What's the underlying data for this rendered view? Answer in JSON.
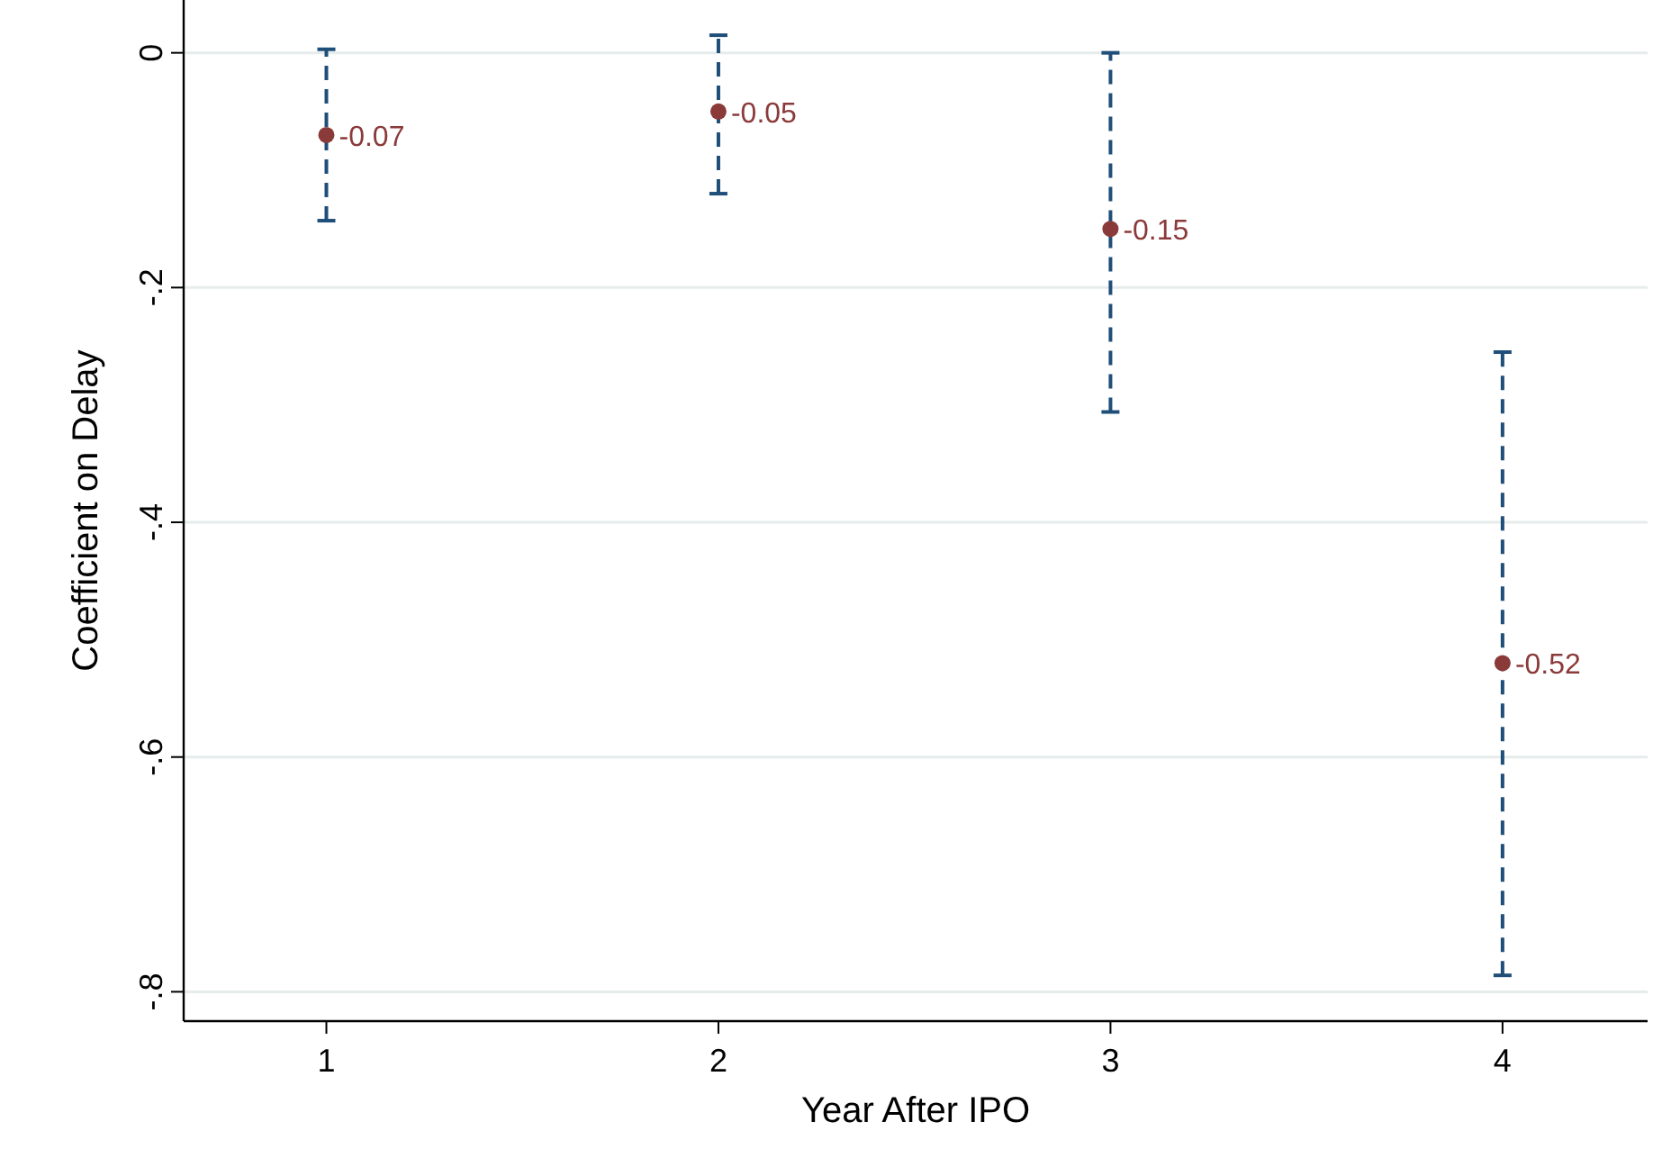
{
  "chart_data": {
    "type": "scatter",
    "xlabel": "Year After IPO",
    "ylabel": "Coefficient on Delay",
    "x": [
      1,
      2,
      3,
      4
    ],
    "series": [
      {
        "color": "#8b3a3a",
        "values": [
          -0.07,
          -0.05,
          -0.15,
          -0.52
        ],
        "errors": [
          [
            -0.143,
            0.003
          ],
          [
            -0.12,
            0.015
          ],
          [
            -0.306,
            0
          ],
          [
            -0.786,
            -0.255
          ]
        ]
      }
    ],
    "data_labels": true,
    "marker": "circle",
    "line_style": "dashed",
    "grid": "y",
    "xlim": [
      0.636,
      4.37
    ],
    "xticks": [
      1,
      2,
      3,
      4
    ],
    "ylim": [
      -0.825,
      0.045
    ],
    "yticks": [
      {
        "value": 0,
        "label": "0"
      },
      {
        "value": -0.2,
        "label": "-.2"
      },
      {
        "value": -0.4,
        "label": "-.4"
      },
      {
        "value": -0.6,
        "label": "-.6"
      },
      {
        "value": -0.8,
        "label": "-.8"
      }
    ]
  }
}
